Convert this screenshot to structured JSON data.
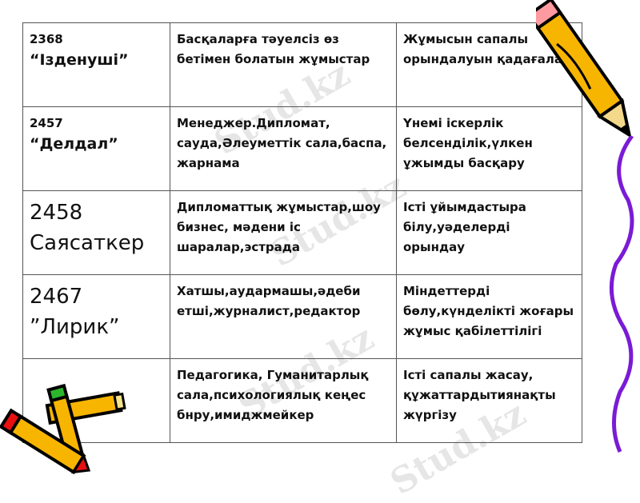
{
  "watermark": "Stud.kz",
  "table": {
    "rows": [
      {
        "code": "2368",
        "name": "“Ізденуші”",
        "work": "Басқаларға тәуелсіз өз бетімен болатын жұмыстар",
        "skill": "Жұмысын сапалы орындалуын қадағалау"
      },
      {
        "code": "2457",
        "name": "“Делдал”",
        "work": "Менеджер.Дипломат, сауда,Әлеуметтік сала,баспа, жарнама",
        "skill": "Үнемі іскерлік белсенділік,үлкен ұжымды басқару"
      },
      {
        "code": "2458",
        "name": "Саясаткер",
        "work": "Дипломаттық жұмыстар,шоу бизнес, мәдени іс шаралар,эстрада",
        "skill": "Істі ұйымдастыра білу,уәделерді орындау"
      },
      {
        "code": "2467",
        "name": "”Лирик”",
        "work": "Хатшы,аудармашы,әдеби етші,журналист,редактор",
        "skill": "Міндеттерді бөлу,күнделікті жоғары жұмыс қабілеттілігі"
      },
      {
        "code": "",
        "name": "",
        "work": "Педагогика, Гуманитарлық сала,психологиялық кеңес бнру,имиджмейкер",
        "skill": "Істі сапалы жасау, құжаттардытиянақты жүргізу"
      }
    ]
  }
}
